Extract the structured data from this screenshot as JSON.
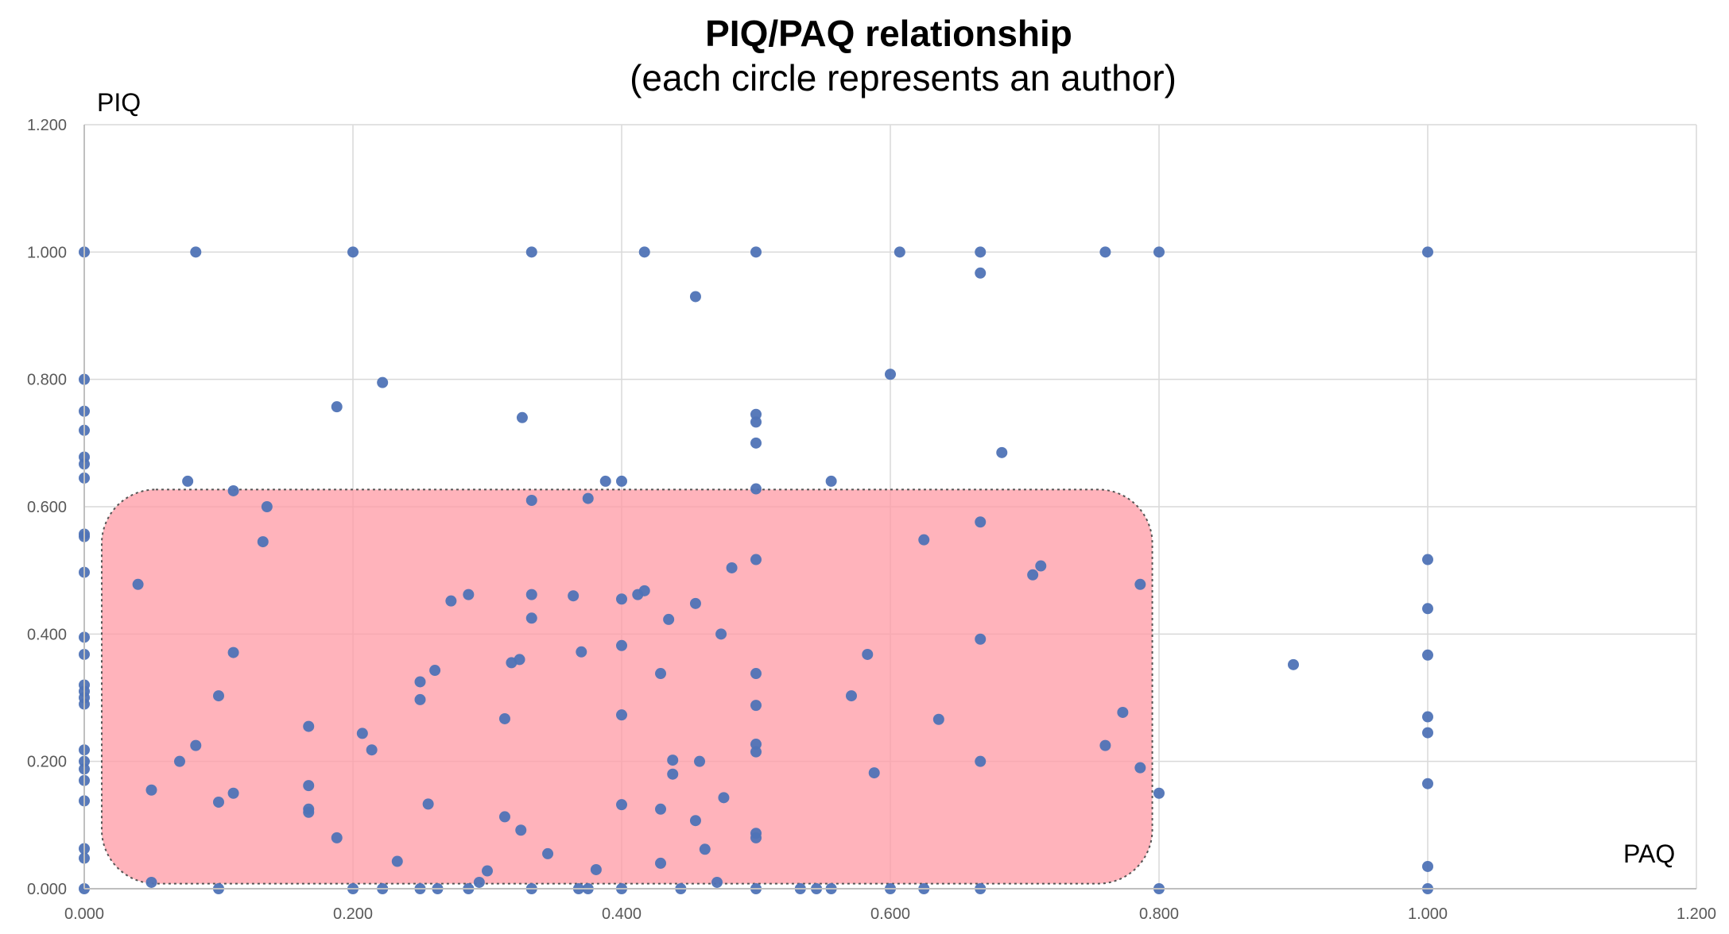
{
  "chart_data": {
    "type": "scatter",
    "title": "PIQ/PAQ relationship",
    "subtitle": "(each circle represents an author)",
    "xlabel": "PAQ",
    "ylabel": "PIQ",
    "xlim": [
      0,
      1.2
    ],
    "ylim": [
      0,
      1.2
    ],
    "x_ticks": [
      "0.000",
      "0.200",
      "0.400",
      "0.600",
      "0.800",
      "1.000",
      "1.200"
    ],
    "y_ticks": [
      "0.000",
      "0.200",
      "0.400",
      "0.600",
      "0.800",
      "1.000",
      "1.200"
    ],
    "grid": true,
    "point_color": "#4f73b6",
    "highlight": {
      "shape": "rounded-rectangle",
      "x_range": [
        0.013,
        0.795
      ],
      "y_range": [
        0.008,
        0.627
      ],
      "fill": "#ff9aa4",
      "opacity": 0.75,
      "border": "dotted"
    },
    "series": [
      {
        "points": [
          [
            0.0,
            1.0
          ],
          [
            0.083,
            1.0
          ],
          [
            0.2,
            1.0
          ],
          [
            0.333,
            1.0
          ],
          [
            0.417,
            1.0
          ],
          [
            0.5,
            1.0
          ],
          [
            0.607,
            1.0
          ],
          [
            0.667,
            1.0
          ],
          [
            0.76,
            1.0
          ],
          [
            0.8,
            1.0
          ],
          [
            1.0,
            1.0
          ],
          [
            0.667,
            0.967
          ],
          [
            0.455,
            0.93
          ],
          [
            0.0,
            0.8
          ],
          [
            0.222,
            0.795
          ],
          [
            0.6,
            0.808
          ],
          [
            0.188,
            0.757
          ],
          [
            0.326,
            0.74
          ],
          [
            0.0,
            0.75
          ],
          [
            0.0,
            0.72
          ],
          [
            0.5,
            0.745
          ],
          [
            0.5,
            0.733
          ],
          [
            0.5,
            0.7
          ],
          [
            0.683,
            0.685
          ],
          [
            0.0,
            0.678
          ],
          [
            0.0,
            0.667
          ],
          [
            0.0,
            0.645
          ],
          [
            0.077,
            0.64
          ],
          [
            0.111,
            0.625
          ],
          [
            0.4,
            0.64
          ],
          [
            0.388,
            0.64
          ],
          [
            0.556,
            0.64
          ],
          [
            0.5,
            0.628
          ],
          [
            0.333,
            0.61
          ],
          [
            0.375,
            0.613
          ],
          [
            0.136,
            0.6
          ],
          [
            0.0,
            0.557
          ],
          [
            0.0,
            0.553
          ],
          [
            0.667,
            0.576
          ],
          [
            0.625,
            0.548
          ],
          [
            0.133,
            0.545
          ],
          [
            0.0,
            0.497
          ],
          [
            0.04,
            0.478
          ],
          [
            0.5,
            0.517
          ],
          [
            0.482,
            0.504
          ],
          [
            0.712,
            0.507
          ],
          [
            0.706,
            0.493
          ],
          [
            0.786,
            0.478
          ],
          [
            1.0,
            0.517
          ],
          [
            0.273,
            0.452
          ],
          [
            0.286,
            0.462
          ],
          [
            0.333,
            0.462
          ],
          [
            0.364,
            0.46
          ],
          [
            0.4,
            0.455
          ],
          [
            0.412,
            0.462
          ],
          [
            0.417,
            0.468
          ],
          [
            0.455,
            0.448
          ],
          [
            1.0,
            0.44
          ],
          [
            0.333,
            0.425
          ],
          [
            0.435,
            0.423
          ],
          [
            0.474,
            0.4
          ],
          [
            0.0,
            0.395
          ],
          [
            0.667,
            0.392
          ],
          [
            0.4,
            0.382
          ],
          [
            0.0,
            0.368
          ],
          [
            0.111,
            0.371
          ],
          [
            0.37,
            0.372
          ],
          [
            0.583,
            0.368
          ],
          [
            0.9,
            0.352
          ],
          [
            1.0,
            0.367
          ],
          [
            0.318,
            0.355
          ],
          [
            0.324,
            0.36
          ],
          [
            0.261,
            0.343
          ],
          [
            0.25,
            0.325
          ],
          [
            0.429,
            0.338
          ],
          [
            0.5,
            0.338
          ],
          [
            0.0,
            0.32
          ],
          [
            0.0,
            0.31
          ],
          [
            0.0,
            0.3
          ],
          [
            0.1,
            0.303
          ],
          [
            0.25,
            0.297
          ],
          [
            0.571,
            0.303
          ],
          [
            0.0,
            0.29
          ],
          [
            0.5,
            0.288
          ],
          [
            0.4,
            0.273
          ],
          [
            0.313,
            0.267
          ],
          [
            0.636,
            0.266
          ],
          [
            0.773,
            0.277
          ],
          [
            1.0,
            0.27
          ],
          [
            0.167,
            0.255
          ],
          [
            0.207,
            0.244
          ],
          [
            1.0,
            0.245
          ],
          [
            0.214,
            0.218
          ],
          [
            0.083,
            0.225
          ],
          [
            0.5,
            0.227
          ],
          [
            0.5,
            0.215
          ],
          [
            0.76,
            0.225
          ],
          [
            0.0,
            0.218
          ],
          [
            0.0,
            0.2
          ],
          [
            0.0,
            0.188
          ],
          [
            0.0,
            0.17
          ],
          [
            0.071,
            0.2
          ],
          [
            0.438,
            0.202
          ],
          [
            0.458,
            0.2
          ],
          [
            0.667,
            0.2
          ],
          [
            0.786,
            0.19
          ],
          [
            0.438,
            0.18
          ],
          [
            0.588,
            0.182
          ],
          [
            1.0,
            0.165
          ],
          [
            0.05,
            0.155
          ],
          [
            0.111,
            0.15
          ],
          [
            0.167,
            0.162
          ],
          [
            0.476,
            0.143
          ],
          [
            0.8,
            0.15
          ],
          [
            0.0,
            0.138
          ],
          [
            0.1,
            0.136
          ],
          [
            0.256,
            0.133
          ],
          [
            0.4,
            0.132
          ],
          [
            0.167,
            0.125
          ],
          [
            0.167,
            0.12
          ],
          [
            0.429,
            0.125
          ],
          [
            0.313,
            0.113
          ],
          [
            0.455,
            0.107
          ],
          [
            0.325,
            0.092
          ],
          [
            0.5,
            0.087
          ],
          [
            0.5,
            0.08
          ],
          [
            0.188,
            0.08
          ],
          [
            0.0,
            0.063
          ],
          [
            0.0,
            0.048
          ],
          [
            0.462,
            0.062
          ],
          [
            0.345,
            0.055
          ],
          [
            0.233,
            0.043
          ],
          [
            0.429,
            0.04
          ],
          [
            0.381,
            0.03
          ],
          [
            0.3,
            0.028
          ],
          [
            1.0,
            0.035
          ],
          [
            0.05,
            0.01
          ],
          [
            0.294,
            0.01
          ],
          [
            0.471,
            0.01
          ],
          [
            0.0,
            0.0
          ],
          [
            0.1,
            0.0
          ],
          [
            0.2,
            0.0
          ],
          [
            0.222,
            0.0
          ],
          [
            0.25,
            0.0
          ],
          [
            0.263,
            0.0
          ],
          [
            0.286,
            0.0
          ],
          [
            0.333,
            0.0
          ],
          [
            0.368,
            0.0
          ],
          [
            0.375,
            0.0
          ],
          [
            0.4,
            0.0
          ],
          [
            0.444,
            0.0
          ],
          [
            0.5,
            0.0
          ],
          [
            0.533,
            0.0
          ],
          [
            0.545,
            0.0
          ],
          [
            0.556,
            0.0
          ],
          [
            0.6,
            0.0
          ],
          [
            0.625,
            0.0
          ],
          [
            0.667,
            0.0
          ],
          [
            0.8,
            0.0
          ],
          [
            1.0,
            0.0
          ]
        ]
      }
    ]
  }
}
